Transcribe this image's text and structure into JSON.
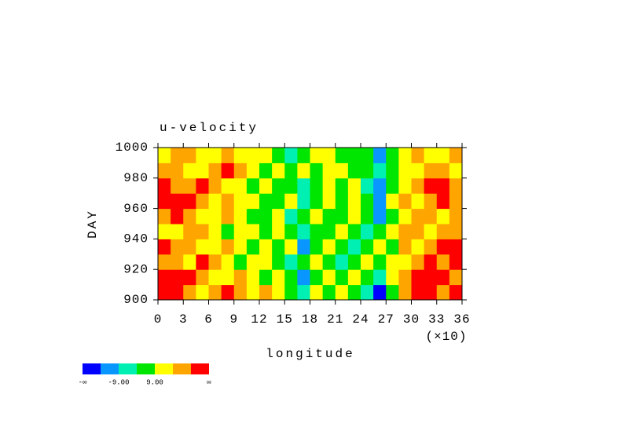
{
  "chart_data": {
    "type": "heatmap",
    "title": "u-velocity",
    "x_label": "longitude",
    "x_scale_label": "(×10)",
    "y_label": "DAY",
    "xlim": [
      0,
      36
    ],
    "xticks": [
      0,
      3,
      6,
      9,
      12,
      15,
      18,
      21,
      24,
      27,
      30,
      33,
      36
    ],
    "ylim": [
      900,
      1000
    ],
    "yticks": [
      900,
      920,
      940,
      960,
      980,
      1000
    ],
    "colors": [
      "#0000ff",
      "#0a96ff",
      "#00f0b4",
      "#00e600",
      "#ffff00",
      "#ffa500",
      "#ff0000"
    ],
    "colorbar_labels": [
      "-∞",
      null,
      "-9.00",
      null,
      "9.00",
      null,
      null,
      "∞"
    ],
    "values": [
      [
        6,
        6,
        5,
        4,
        5,
        6,
        5,
        4,
        5,
        4,
        3,
        2,
        4,
        3,
        4,
        3,
        2,
        0,
        3,
        5,
        6,
        6,
        5,
        6
      ],
      [
        6,
        6,
        6,
        5,
        4,
        4,
        5,
        4,
        3,
        4,
        3,
        1,
        3,
        4,
        3,
        4,
        3,
        2,
        4,
        5,
        6,
        6,
        6,
        5
      ],
      [
        5,
        5,
        4,
        6,
        5,
        4,
        3,
        4,
        4,
        3,
        2,
        3,
        4,
        3,
        2,
        3,
        4,
        3,
        4,
        4,
        5,
        6,
        5,
        6
      ],
      [
        6,
        5,
        5,
        4,
        4,
        5,
        4,
        3,
        4,
        3,
        4,
        1,
        3,
        4,
        3,
        2,
        3,
        4,
        3,
        5,
        4,
        5,
        6,
        6
      ],
      [
        4,
        4,
        5,
        5,
        4,
        3,
        4,
        4,
        3,
        4,
        3,
        2,
        3,
        3,
        4,
        3,
        2,
        3,
        4,
        5,
        5,
        4,
        5,
        5
      ],
      [
        5,
        6,
        5,
        4,
        4,
        5,
        4,
        3,
        3,
        4,
        2,
        3,
        4,
        3,
        3,
        4,
        3,
        1,
        3,
        4,
        5,
        5,
        4,
        5
      ],
      [
        6,
        6,
        6,
        5,
        4,
        5,
        4,
        4,
        3,
        3,
        4,
        2,
        3,
        4,
        3,
        4,
        3,
        1,
        4,
        5,
        4,
        5,
        6,
        5
      ],
      [
        6,
        5,
        5,
        6,
        5,
        4,
        4,
        3,
        4,
        3,
        3,
        2,
        3,
        4,
        3,
        4,
        2,
        1,
        3,
        4,
        5,
        6,
        6,
        5
      ],
      [
        5,
        5,
        4,
        4,
        5,
        6,
        5,
        4,
        3,
        4,
        3,
        4,
        3,
        4,
        4,
        3,
        3,
        2,
        3,
        4,
        4,
        5,
        5,
        4
      ],
      [
        4,
        5,
        5,
        4,
        4,
        5,
        4,
        4,
        4,
        3,
        2,
        3,
        4,
        4,
        3,
        3,
        3,
        1,
        3,
        4,
        5,
        4,
        4,
        5
      ]
    ]
  }
}
